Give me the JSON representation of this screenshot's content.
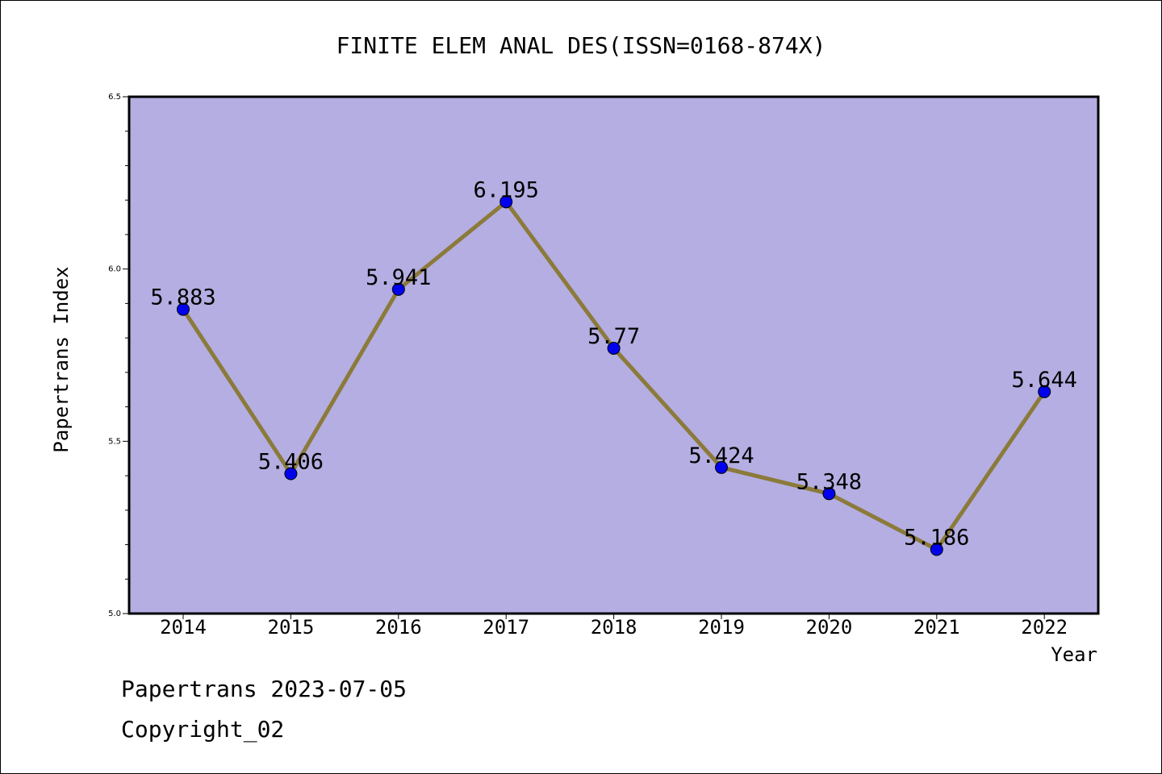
{
  "chart_data": {
    "type": "line",
    "title": "FINITE ELEM ANAL DES(ISSN=0168-874X)",
    "xlabel": "Year",
    "ylabel": "Papertrans Index",
    "categories": [
      "2014",
      "2015",
      "2016",
      "2017",
      "2018",
      "2019",
      "2020",
      "2021",
      "2022"
    ],
    "values": [
      5.883,
      5.406,
      5.941,
      6.195,
      5.77,
      5.424,
      5.348,
      5.186,
      5.644
    ],
    "data_labels": [
      "5.883",
      "5.406",
      "5.941",
      "6.195",
      "5.77",
      "5.424",
      "5.348",
      "5.186",
      "5.644"
    ],
    "ylim": [
      5.0,
      6.5
    ],
    "yticks": [
      "5.0",
      "5.5",
      "6.0",
      "6.5"
    ],
    "grid": false,
    "colors": {
      "plot_background": "#b4aee2",
      "line": "#8b7a3a",
      "marker": "#0000ee"
    }
  },
  "footer": {
    "date_line": "Papertrans 2023-07-05",
    "copyright_line": "Copyright_02"
  }
}
